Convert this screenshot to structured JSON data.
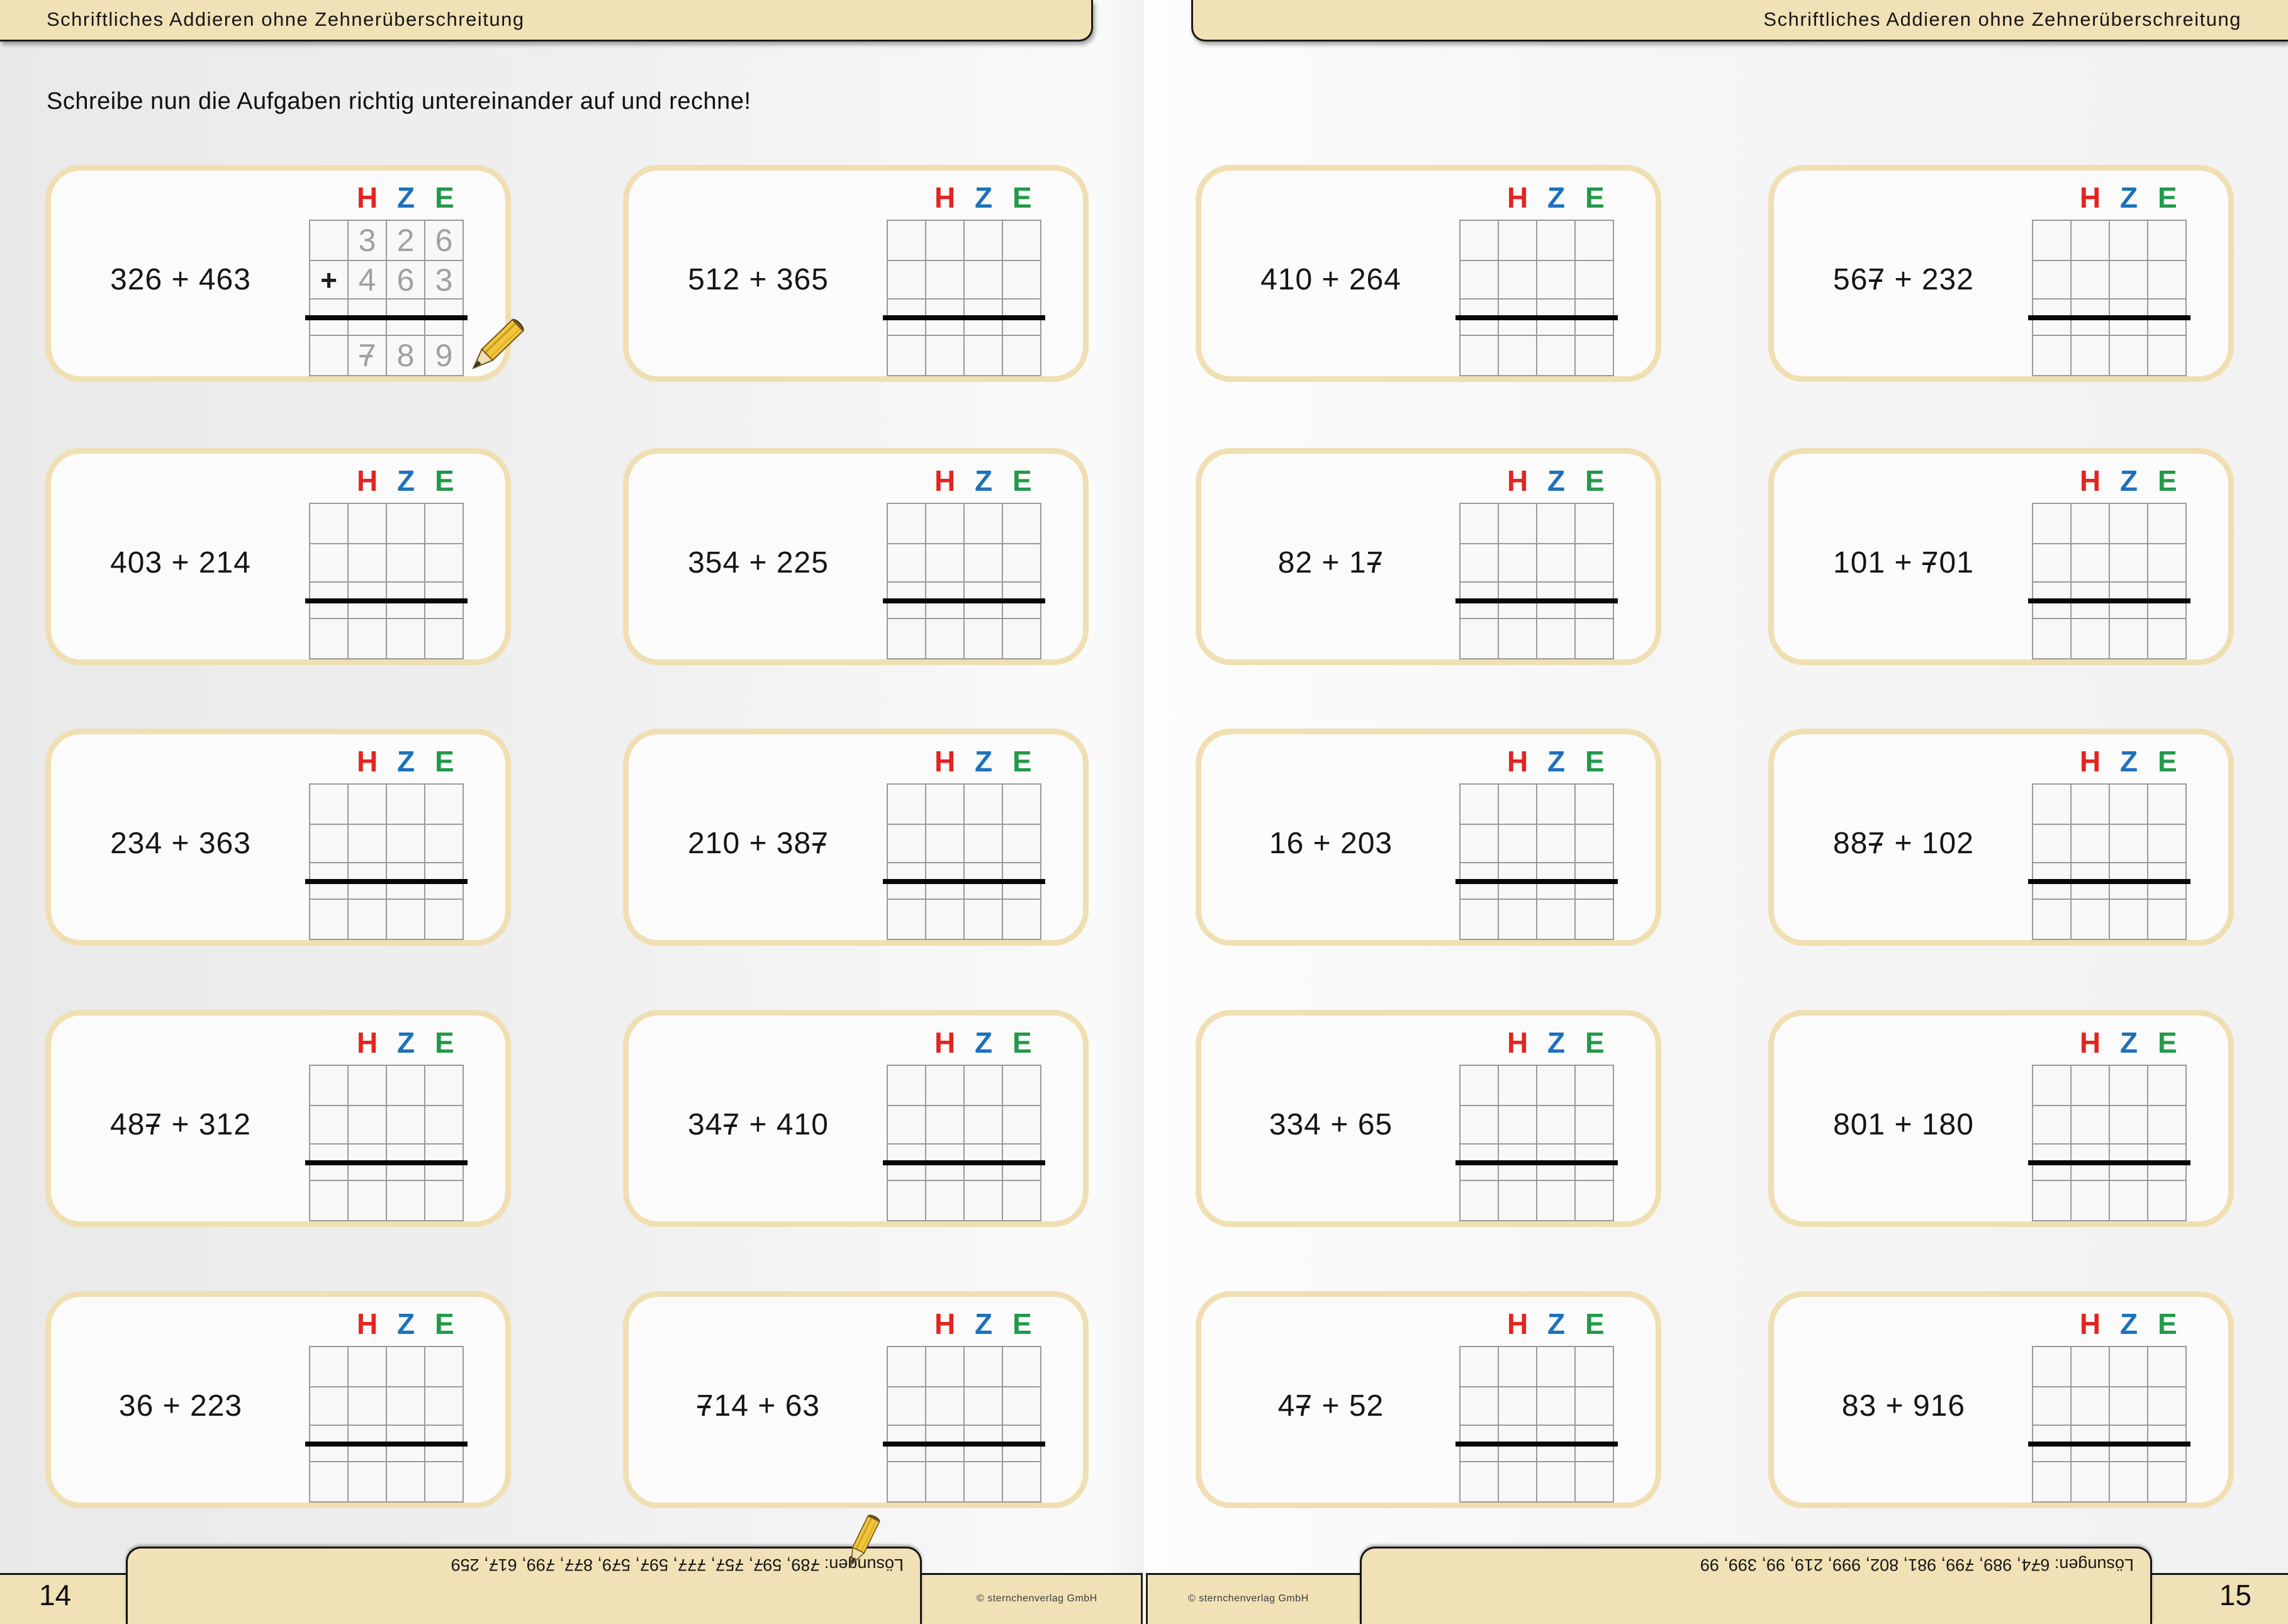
{
  "colors": {
    "band_bg": "#f1e1b6",
    "box_border": "#f0dfb2",
    "grid_line": "#9a9a9a",
    "handwriting": "#a0a0a0"
  },
  "hze": [
    {
      "text": "H",
      "color": "#e32420"
    },
    {
      "text": "Z",
      "color": "#1d71bc"
    },
    {
      "text": "E",
      "color": "#219a48"
    }
  ],
  "pages": [
    {
      "header": "Schriftliches Addieren ohne Zehnerüberschreitung",
      "instruction": "Schreibe nun die Aufgaben richtig untereinander auf und rechne!",
      "page_number": "14",
      "copyright": "© sternchenverlag GmbH",
      "solutions": "Lösungen: 789, 597, 757, 777, 597, 579, 877, 799, 617, 259",
      "problems": [
        {
          "label": "326 + 463",
          "example": true,
          "grid": [
            [
              "",
              "3",
              "2",
              "6"
            ],
            [
              "+",
              "4",
              "6",
              "3"
            ],
            [
              "",
              "",
              "",
              ""
            ],
            [
              "",
              "",
              "",
              ""
            ],
            [
              "",
              "7",
              "8",
              "9"
            ]
          ]
        },
        {
          "label": "512 + 365"
        },
        {
          "label": "403 + 214"
        },
        {
          "label": "354 + 225"
        },
        {
          "label": "234 + 363"
        },
        {
          "label": "210 + 387"
        },
        {
          "label": "487 + 312"
        },
        {
          "label": "347 + 410"
        },
        {
          "label": "36 + 223"
        },
        {
          "label": "714 + 63"
        }
      ]
    },
    {
      "header": "Schriftliches Addieren ohne Zehnerüberschreitung",
      "instruction": "",
      "page_number": "15",
      "copyright": "© sternchenverlag GmbH",
      "solutions": "Lösungen: 674, 989, 799, 981, 802, 999, 219, 99, 399, 99",
      "problems": [
        {
          "label": "410 + 264"
        },
        {
          "label": "567 + 232"
        },
        {
          "label": "82 + 17"
        },
        {
          "label": "101 + 701"
        },
        {
          "label": "16 + 203"
        },
        {
          "label": "887 + 102"
        },
        {
          "label": "334 + 65"
        },
        {
          "label": "801 + 180"
        },
        {
          "label": "47 + 52"
        },
        {
          "label": "83 + 916"
        }
      ]
    }
  ]
}
